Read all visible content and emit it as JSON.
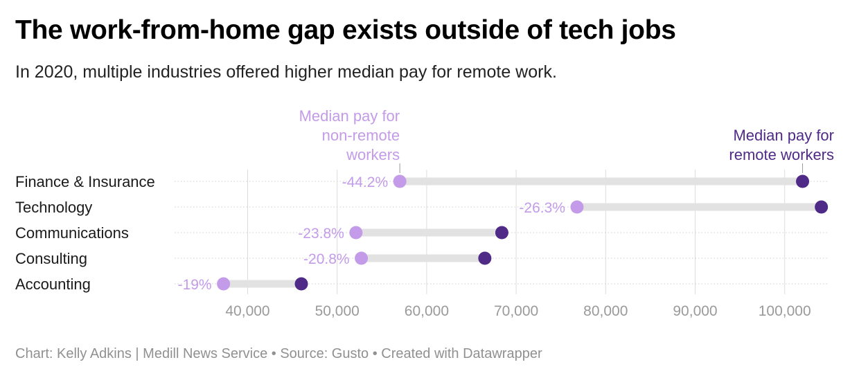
{
  "title": "The work-from-home gap exists outside of tech jobs",
  "subtitle": "In 2020, multiple industries offered higher median pay for remote work.",
  "footer": "Chart: Kelly Adkins | Medill News Service • Source: Gusto • Created with Datawrapper",
  "colors": {
    "non_remote": "#c39be8",
    "remote": "#4f2a86",
    "bar": "#e2e2e2",
    "grid": "#dcdcdc"
  },
  "chart_data": {
    "type": "dot-range",
    "xlim": [
      32000,
      105000
    ],
    "ticks": [
      40000,
      50000,
      60000,
      70000,
      80000,
      90000,
      100000
    ],
    "tick_labels": [
      "40,000",
      "50,000",
      "60,000",
      "70,000",
      "80,000",
      "90,000",
      "100,000"
    ],
    "series": [
      {
        "name": "Median pay for non-remote workers",
        "color": "#c39be8"
      },
      {
        "name": "Median pay for remote workers",
        "color": "#4f2a86"
      }
    ],
    "annotation_lines": {
      "non_remote": [
        "Median pay for",
        "non-remote",
        "workers"
      ],
      "remote": [
        "Median pay for",
        "remote workers"
      ]
    },
    "rows": [
      {
        "category": "Finance & Insurance",
        "non_remote": 57000,
        "remote": 102000,
        "label": "-44.2%"
      },
      {
        "category": "Technology",
        "non_remote": 76800,
        "remote": 104100,
        "label": "-26.3%"
      },
      {
        "category": "Communications",
        "non_remote": 52100,
        "remote": 68400,
        "label": "-23.8%"
      },
      {
        "category": "Consulting",
        "non_remote": 52700,
        "remote": 66500,
        "label": "-20.8%"
      },
      {
        "category": "Accounting",
        "non_remote": 37300,
        "remote": 46000,
        "label": "-19%"
      }
    ]
  }
}
